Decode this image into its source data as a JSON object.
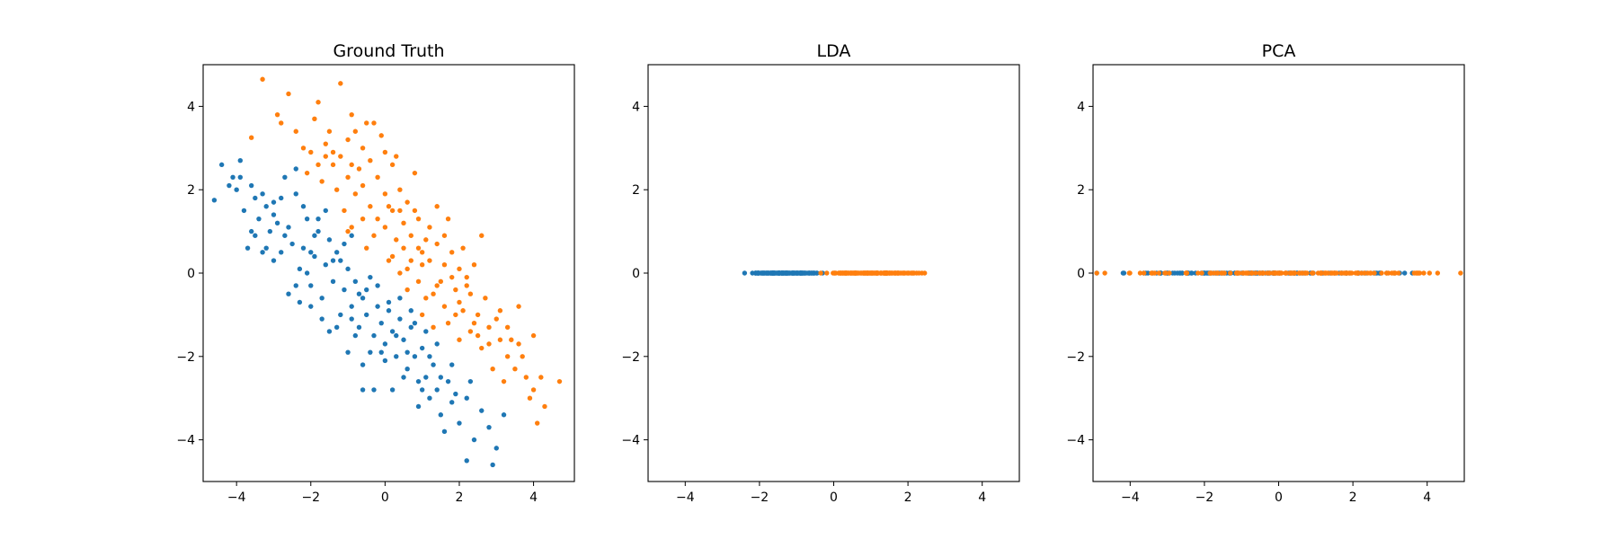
{
  "colors": {
    "class_0": "#1f77b4",
    "class_1": "#ff7f0e",
    "axes": "#000000",
    "background": "#ffffff"
  },
  "chart_data": [
    {
      "type": "scatter",
      "title": "Ground Truth",
      "xlabel": "",
      "ylabel": "",
      "xlim": [
        -4.9,
        5.1
      ],
      "ylim": [
        -5,
        5
      ],
      "xticks": [
        -4,
        -2,
        0,
        2,
        4
      ],
      "yticks": [
        -4,
        -2,
        0,
        2,
        4
      ],
      "grid": false,
      "series": [
        {
          "color": "#1f77b4",
          "points": [
            [
              -4.6,
              1.75
            ],
            [
              -4.4,
              2.6
            ],
            [
              -4.2,
              2.1
            ],
            [
              -4.1,
              2.3
            ],
            [
              -4.0,
              2.0
            ],
            [
              -3.8,
              1.5
            ],
            [
              -3.6,
              2.1
            ],
            [
              -3.4,
              1.3
            ],
            [
              -3.9,
              2.7
            ],
            [
              -3.3,
              1.9
            ],
            [
              -3.2,
              1.6
            ],
            [
              -3.1,
              1.0
            ],
            [
              -3.0,
              1.4
            ],
            [
              -3.7,
              0.6
            ],
            [
              -3.5,
              0.9
            ],
            [
              -3.3,
              0.5
            ],
            [
              -3.0,
              0.3
            ],
            [
              -2.9,
              1.2
            ],
            [
              -2.8,
              1.8
            ],
            [
              -2.7,
              2.3
            ],
            [
              -2.6,
              1.1
            ],
            [
              -2.5,
              0.7
            ],
            [
              -2.4,
              1.9
            ],
            [
              -2.3,
              0.1
            ],
            [
              -2.2,
              0.6
            ],
            [
              -2.1,
              1.3
            ],
            [
              -2.0,
              -0.3
            ],
            [
              -1.9,
              0.4
            ],
            [
              -1.8,
              1.0
            ],
            [
              -1.7,
              -0.6
            ],
            [
              -1.6,
              0.2
            ],
            [
              -1.5,
              0.8
            ],
            [
              -1.4,
              -0.2
            ],
            [
              -1.3,
              0.5
            ],
            [
              -1.2,
              -1.0
            ],
            [
              -1.1,
              -0.4
            ],
            [
              -1.0,
              0.1
            ],
            [
              -0.9,
              -0.8
            ],
            [
              -0.8,
              -0.2
            ],
            [
              -0.7,
              -1.3
            ],
            [
              -0.6,
              -0.6
            ],
            [
              -0.5,
              -1.0
            ],
            [
              -0.4,
              -0.1
            ],
            [
              -0.3,
              -1.5
            ],
            [
              -0.2,
              -0.8
            ],
            [
              -0.1,
              -1.2
            ],
            [
              0.0,
              -1.7
            ],
            [
              0.1,
              -0.9
            ],
            [
              0.2,
              -1.4
            ],
            [
              0.3,
              -2.0
            ],
            [
              0.4,
              -1.1
            ],
            [
              0.5,
              -1.6
            ],
            [
              0.6,
              -2.3
            ],
            [
              0.7,
              -1.3
            ],
            [
              0.8,
              -2.0
            ],
            [
              0.9,
              -2.6
            ],
            [
              1.0,
              -1.8
            ],
            [
              1.1,
              -2.5
            ],
            [
              1.2,
              -3.0
            ],
            [
              1.3,
              -2.2
            ],
            [
              1.4,
              -2.8
            ],
            [
              1.5,
              -3.4
            ],
            [
              1.7,
              -2.6
            ],
            [
              1.8,
              -3.1
            ],
            [
              2.0,
              -3.6
            ],
            [
              2.2,
              -3.0
            ],
            [
              2.4,
              -4.0
            ],
            [
              2.6,
              -3.3
            ],
            [
              2.8,
              -3.7
            ],
            [
              3.0,
              -4.2
            ],
            [
              3.2,
              -3.4
            ],
            [
              2.9,
              -4.6
            ],
            [
              2.2,
              -4.5
            ],
            [
              1.6,
              -3.8
            ],
            [
              0.9,
              -3.2
            ],
            [
              -2.6,
              -0.5
            ],
            [
              -2.0,
              -0.8
            ],
            [
              -1.5,
              -1.4
            ],
            [
              -0.6,
              -2.2
            ],
            [
              0.2,
              -2.8
            ],
            [
              -0.3,
              -2.8
            ],
            [
              -0.6,
              -2.8
            ],
            [
              -2.4,
              -0.3
            ],
            [
              -1.9,
              0.9
            ],
            [
              -2.8,
              0.5
            ],
            [
              -3.2,
              0.6
            ],
            [
              -1.3,
              -1.3
            ],
            [
              -0.8,
              -1.5
            ],
            [
              -0.4,
              -1.9
            ],
            [
              0.0,
              -2.1
            ],
            [
              0.5,
              -2.5
            ],
            [
              1.0,
              -2.8
            ],
            [
              1.5,
              -2.5
            ],
            [
              1.9,
              -2.9
            ],
            [
              -1.1,
              0.7
            ],
            [
              -0.9,
              0.9
            ],
            [
              -1.6,
              1.5
            ],
            [
              -2.4,
              2.5
            ],
            [
              -3.6,
              1.0
            ],
            [
              -3.9,
              2.3
            ],
            [
              -2.2,
              1.6
            ],
            [
              -1.8,
              1.3
            ],
            [
              -1.0,
              -1.9
            ],
            [
              -0.2,
              -0.3
            ],
            [
              0.4,
              -0.6
            ],
            [
              0.7,
              -0.9
            ],
            [
              1.1,
              -1.4
            ],
            [
              1.4,
              -1.7
            ],
            [
              0.3,
              -1.5
            ],
            [
              -0.5,
              -0.4
            ],
            [
              -1.4,
              0.3
            ],
            [
              -2.1,
              0.0
            ],
            [
              -2.7,
              0.9
            ],
            [
              -3.0,
              1.7
            ],
            [
              -3.5,
              1.8
            ],
            [
              -2.3,
              -0.7
            ],
            [
              -1.7,
              -1.1
            ],
            [
              -0.9,
              -1.1
            ],
            [
              -0.1,
              -1.9
            ],
            [
              0.6,
              -1.9
            ],
            [
              1.2,
              -2.0
            ],
            [
              1.8,
              -2.2
            ],
            [
              2.3,
              -2.6
            ],
            [
              -2.0,
              0.5
            ],
            [
              -1.2,
              0.3
            ],
            [
              -0.7,
              -0.5
            ],
            [
              0.1,
              -0.7
            ],
            [
              0.8,
              -1.2
            ]
          ]
        },
        {
          "color": "#ff7f0e",
          "points": [
            [
              -3.3,
              4.65
            ],
            [
              -1.2,
              4.55
            ],
            [
              -2.6,
              4.3
            ],
            [
              -2.9,
              3.8
            ],
            [
              -3.6,
              3.25
            ],
            [
              -2.8,
              3.6
            ],
            [
              -1.9,
              3.7
            ],
            [
              -1.5,
              3.4
            ],
            [
              -1.6,
              3.1
            ],
            [
              -1.4,
              2.9
            ],
            [
              -1.8,
              2.6
            ],
            [
              -1.2,
              2.8
            ],
            [
              -1.0,
              3.2
            ],
            [
              -0.8,
              3.4
            ],
            [
              -0.6,
              3.0
            ],
            [
              -0.4,
              2.7
            ],
            [
              -0.3,
              3.6
            ],
            [
              -0.1,
              3.3
            ],
            [
              0.0,
              2.9
            ],
            [
              0.2,
              2.6
            ],
            [
              -2.1,
              2.4
            ],
            [
              -1.7,
              2.2
            ],
            [
              -1.3,
              2.0
            ],
            [
              -1.0,
              2.3
            ],
            [
              -0.8,
              1.9
            ],
            [
              -0.6,
              2.1
            ],
            [
              -0.4,
              1.6
            ],
            [
              -0.2,
              2.3
            ],
            [
              0.0,
              1.9
            ],
            [
              0.2,
              1.5
            ],
            [
              0.4,
              2.0
            ],
            [
              0.6,
              1.7
            ],
            [
              -1.1,
              1.5
            ],
            [
              -0.9,
              1.1
            ],
            [
              -0.6,
              1.3
            ],
            [
              -0.3,
              0.9
            ],
            [
              0.0,
              1.1
            ],
            [
              0.3,
              0.8
            ],
            [
              0.5,
              1.2
            ],
            [
              0.7,
              0.9
            ],
            [
              0.9,
              1.3
            ],
            [
              1.1,
              0.8
            ],
            [
              0.2,
              0.4
            ],
            [
              0.4,
              0.0
            ],
            [
              0.7,
              0.3
            ],
            [
              0.9,
              0.6
            ],
            [
              1.2,
              0.3
            ],
            [
              1.4,
              0.7
            ],
            [
              1.6,
              0.2
            ],
            [
              1.8,
              0.5
            ],
            [
              2.0,
              0.1
            ],
            [
              0.6,
              -0.4
            ],
            [
              0.9,
              -0.2
            ],
            [
              1.1,
              -0.6
            ],
            [
              1.4,
              -0.3
            ],
            [
              1.6,
              -0.8
            ],
            [
              1.9,
              -0.4
            ],
            [
              2.1,
              -0.9
            ],
            [
              2.3,
              -0.5
            ],
            [
              2.5,
              -1.0
            ],
            [
              1.0,
              -1.0
            ],
            [
              1.3,
              -1.3
            ],
            [
              1.7,
              -1.2
            ],
            [
              2.0,
              -1.6
            ],
            [
              2.3,
              -1.4
            ],
            [
              2.6,
              -1.8
            ],
            [
              2.8,
              -1.3
            ],
            [
              3.1,
              -1.6
            ],
            [
              3.3,
              -2.0
            ],
            [
              3.6,
              -1.7
            ],
            [
              2.9,
              -2.3
            ],
            [
              3.2,
              -2.6
            ],
            [
              3.5,
              -2.3
            ],
            [
              3.8,
              -2.5
            ],
            [
              4.0,
              -2.8
            ],
            [
              4.2,
              -2.5
            ],
            [
              3.9,
              -3.0
            ],
            [
              4.1,
              -3.6
            ],
            [
              4.3,
              -3.2
            ],
            [
              4.7,
              -2.6
            ],
            [
              4.0,
              -1.5
            ],
            [
              3.6,
              -0.8
            ],
            [
              3.1,
              -0.9
            ],
            [
              2.6,
              0.9
            ],
            [
              2.2,
              -0.1
            ],
            [
              1.7,
              1.3
            ],
            [
              1.4,
              1.6
            ],
            [
              0.8,
              2.4
            ],
            [
              0.3,
              2.8
            ],
            [
              -0.5,
              3.6
            ],
            [
              -0.9,
              3.8
            ],
            [
              -1.8,
              4.1
            ],
            [
              -2.4,
              3.4
            ],
            [
              -2.2,
              3.0
            ],
            [
              -1.0,
              1.0
            ],
            [
              -0.5,
              0.6
            ],
            [
              0.1,
              0.3
            ],
            [
              0.5,
              0.6
            ],
            [
              1.0,
              0.2
            ],
            [
              1.5,
              -0.2
            ],
            [
              2.0,
              -0.7
            ],
            [
              2.4,
              -1.2
            ],
            [
              2.8,
              -1.7
            ],
            [
              3.3,
              -1.3
            ],
            [
              0.8,
              1.5
            ],
            [
              1.2,
              1.1
            ],
            [
              1.6,
              0.9
            ],
            [
              2.1,
              0.6
            ],
            [
              2.4,
              0.2
            ],
            [
              -0.7,
              2.5
            ],
            [
              -1.4,
              2.6
            ],
            [
              -2.0,
              2.9
            ],
            [
              0.1,
              1.6
            ],
            [
              -0.2,
              1.3
            ],
            [
              0.4,
              1.5
            ],
            [
              1.0,
              0.5
            ],
            [
              1.8,
              -0.1
            ],
            [
              2.2,
              -0.3
            ],
            [
              2.7,
              -0.6
            ],
            [
              3.0,
              -1.1
            ],
            [
              3.4,
              -1.6
            ],
            [
              3.7,
              -2.0
            ],
            [
              0.6,
              0.1
            ],
            [
              1.3,
              -0.5
            ],
            [
              1.9,
              -1.0
            ],
            [
              2.5,
              -1.5
            ],
            [
              -1.6,
              2.8
            ],
            [
              -0.9,
              2.6
            ]
          ]
        }
      ]
    },
    {
      "type": "scatter",
      "title": "LDA",
      "xlabel": "",
      "ylabel": "",
      "xlim": [
        -5,
        5
      ],
      "ylim": [
        -5,
        5
      ],
      "xticks": [
        -4,
        -2,
        0,
        2,
        4
      ],
      "yticks": [
        -4,
        -2,
        0,
        2,
        4
      ],
      "grid": false,
      "series": [
        {
          "color": "#1f77b4",
          "x_range": [
            -2.4,
            -0.3
          ],
          "y": 0,
          "count": 150
        },
        {
          "color": "#ff7f0e",
          "x_range": [
            -0.35,
            2.45
          ],
          "y": 0,
          "count": 150
        }
      ]
    },
    {
      "type": "scatter",
      "title": "PCA",
      "xlabel": "",
      "ylabel": "",
      "xlim": [
        -5,
        5
      ],
      "ylim": [
        -5,
        5
      ],
      "xticks": [
        -4,
        -2,
        0,
        2,
        4
      ],
      "yticks": [
        -4,
        -2,
        0,
        2,
        4
      ],
      "grid": false,
      "series": [
        {
          "color": "#1f77b4",
          "x_range": [
            -4.9,
            3.6
          ],
          "y": 0,
          "count": 150
        },
        {
          "color": "#ff7f0e",
          "x_range": [
            -4.9,
            4.9
          ],
          "y": 0,
          "count": 150
        }
      ]
    }
  ]
}
